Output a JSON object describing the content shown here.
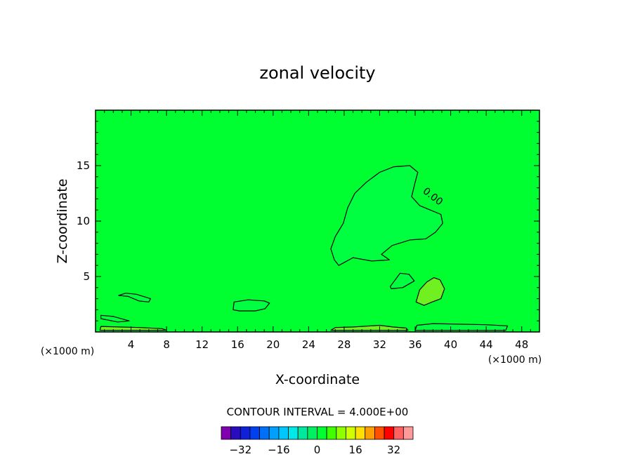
{
  "chart_data": {
    "type": "heatmap",
    "title": "zonal velocity",
    "xlabel": "X-coordinate",
    "ylabel": "Z-coordinate",
    "x_unit": "(×1000 m)",
    "xlim": [
      0,
      50
    ],
    "ylim": [
      0,
      20
    ],
    "x_ticks": [
      4,
      8,
      12,
      16,
      20,
      24,
      28,
      32,
      36,
      40,
      44,
      48
    ],
    "y_ticks": [
      5,
      10,
      15
    ],
    "contour_interval_text": "CONTOUR INTERVAL = 4.000E+00",
    "contour_label": "0.00",
    "background_value": 0,
    "colorbar": {
      "levels": [
        -36,
        -32,
        -28,
        -24,
        -20,
        -16,
        -12,
        -8,
        -4,
        0,
        4,
        8,
        12,
        16,
        20,
        24,
        28,
        32,
        36
      ],
      "colors": [
        "#8000b0",
        "#2a0cc0",
        "#1020d8",
        "#0040f0",
        "#0070f8",
        "#00a0ff",
        "#00c8ff",
        "#00e8e8",
        "#00e8a0",
        "#00f060",
        "#00ff30",
        "#40ff00",
        "#90ff00",
        "#d0ff00",
        "#ffe000",
        "#ffa000",
        "#ff5000",
        "#ff0000",
        "#ff6060",
        "#ff9a9a"
      ],
      "tick_labels": [
        "-32",
        "-16",
        "0",
        "16",
        "32"
      ],
      "tick_values": [
        -32,
        -16,
        0,
        16,
        32
      ]
    },
    "regions": [
      {
        "name": "large negative lobe",
        "sign": "negative",
        "value": -2,
        "color": "#00ff40",
        "outline": [
          [
            26.9,
            6.5
          ],
          [
            26.5,
            7.5
          ],
          [
            27.0,
            8.6
          ],
          [
            27.9,
            9.8
          ],
          [
            28.4,
            11.2
          ],
          [
            29.2,
            12.5
          ],
          [
            30.5,
            13.5
          ],
          [
            32.0,
            14.4
          ],
          [
            33.6,
            14.9
          ],
          [
            35.4,
            15.0
          ],
          [
            36.3,
            14.4
          ],
          [
            36.0,
            13.5
          ],
          [
            35.6,
            12.2
          ],
          [
            36.5,
            11.4
          ],
          [
            37.7,
            11.0
          ],
          [
            38.9,
            10.6
          ],
          [
            39.1,
            9.8
          ],
          [
            38.3,
            9.0
          ],
          [
            37.2,
            8.4
          ],
          [
            35.4,
            8.3
          ],
          [
            33.4,
            7.8
          ],
          [
            32.2,
            7.0
          ],
          [
            33.1,
            6.5
          ],
          [
            31.1,
            6.4
          ],
          [
            29.0,
            6.7
          ],
          [
            27.4,
            6.0
          ],
          [
            26.9,
            6.5
          ]
        ]
      },
      {
        "name": "small negative lobe",
        "sign": "negative",
        "value": -2,
        "color": "#00ff40",
        "outline": [
          [
            33.2,
            4.1
          ],
          [
            34.3,
            5.3
          ],
          [
            35.3,
            5.2
          ],
          [
            35.9,
            4.6
          ],
          [
            34.6,
            4.0
          ],
          [
            33.3,
            3.9
          ],
          [
            33.2,
            4.1
          ]
        ]
      },
      {
        "name": "positive lobe",
        "sign": "positive",
        "value": 2,
        "color": "#70f020",
        "outline": [
          [
            36.1,
            2.7
          ],
          [
            36.5,
            3.8
          ],
          [
            37.3,
            4.5
          ],
          [
            38.1,
            4.9
          ],
          [
            38.8,
            4.7
          ],
          [
            39.3,
            3.9
          ],
          [
            38.9,
            3.0
          ],
          [
            37.9,
            2.7
          ],
          [
            37.0,
            2.4
          ],
          [
            36.1,
            2.7
          ]
        ]
      },
      {
        "name": "mid-level negative band",
        "sign": "negative",
        "value": -2,
        "color": "#00ff40",
        "outline": [
          [
            15.5,
            2.0
          ],
          [
            15.6,
            2.7
          ],
          [
            17.2,
            2.9
          ],
          [
            19.0,
            2.8
          ],
          [
            19.6,
            2.6
          ],
          [
            19.1,
            2.1
          ],
          [
            18.0,
            1.9
          ],
          [
            16.2,
            1.9
          ],
          [
            15.5,
            2.0
          ]
        ]
      },
      {
        "name": "left upper patch",
        "sign": "negative",
        "value": -2,
        "color": "#00ff40",
        "outline": [
          [
            2.6,
            3.3
          ],
          [
            3.4,
            3.5
          ],
          [
            4.6,
            3.4
          ],
          [
            6.2,
            3.0
          ],
          [
            6.0,
            2.7
          ],
          [
            4.9,
            2.8
          ],
          [
            3.7,
            3.2
          ],
          [
            2.6,
            3.3
          ]
        ]
      },
      {
        "name": "left near-surface patch",
        "sign": "negative",
        "value": -2,
        "color": "#00ff40",
        "outline": [
          [
            0.6,
            1.2
          ],
          [
            0.6,
            1.5
          ],
          [
            2.0,
            1.4
          ],
          [
            3.8,
            1.0
          ],
          [
            2.5,
            0.9
          ],
          [
            0.6,
            1.2
          ]
        ]
      },
      {
        "name": "surface layer left",
        "sign": "positive",
        "value": 2,
        "color": "#70f020",
        "outline": [
          [
            0.5,
            0.15
          ],
          [
            0.6,
            0.5
          ],
          [
            2.7,
            0.45
          ],
          [
            5.0,
            0.4
          ],
          [
            7.5,
            0.3
          ],
          [
            8.0,
            0.15
          ],
          [
            0.5,
            0.15
          ]
        ]
      },
      {
        "name": "surface layer middle",
        "sign": "positive",
        "value": 2,
        "color": "#70f020",
        "outline": [
          [
            26.5,
            0.15
          ],
          [
            27.0,
            0.4
          ],
          [
            29.0,
            0.45
          ],
          [
            32.0,
            0.6
          ],
          [
            33.5,
            0.45
          ],
          [
            35.0,
            0.35
          ],
          [
            35.2,
            0.15
          ],
          [
            26.5,
            0.15
          ]
        ]
      },
      {
        "name": "surface layer right",
        "sign": "negative",
        "value": -2,
        "color": "#00ff40",
        "outline": [
          [
            36.0,
            0.15
          ],
          [
            36.2,
            0.6
          ],
          [
            38.0,
            0.75
          ],
          [
            41.0,
            0.7
          ],
          [
            44.0,
            0.65
          ],
          [
            46.4,
            0.55
          ],
          [
            46.2,
            0.15
          ],
          [
            36.0,
            0.15
          ]
        ]
      }
    ]
  }
}
